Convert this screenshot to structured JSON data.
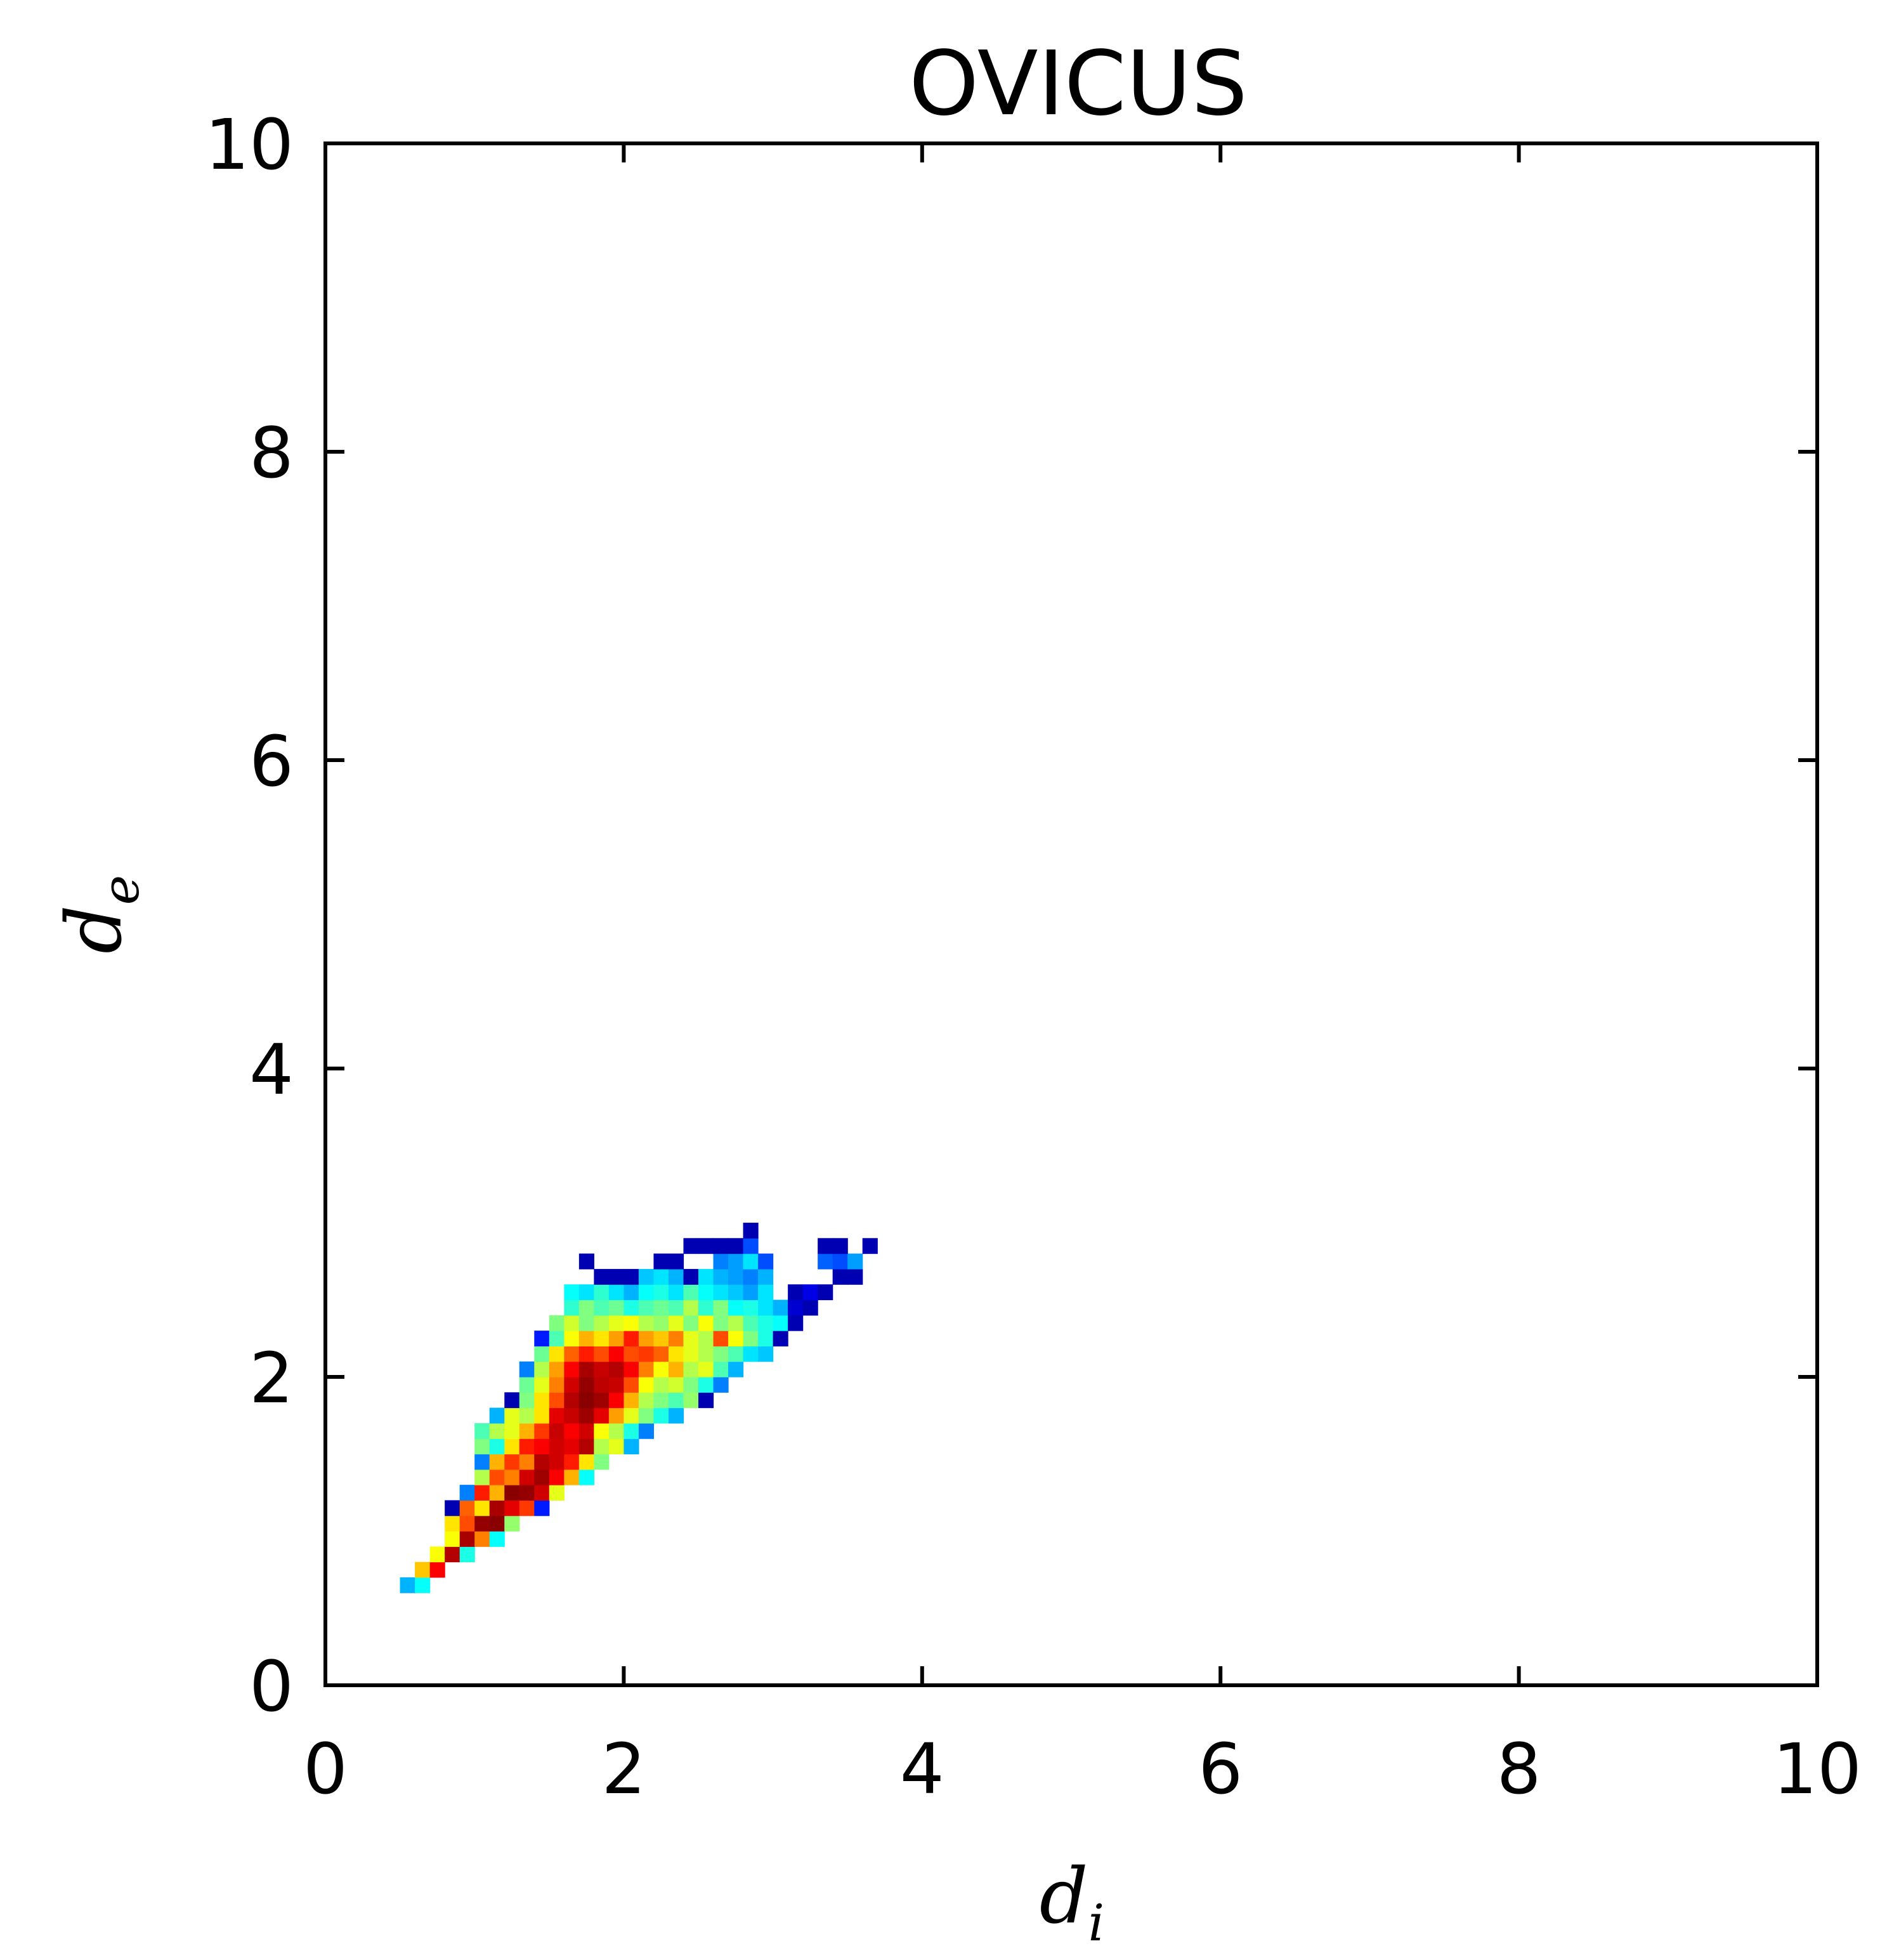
{
  "chart_data": {
    "type": "heatmap",
    "title": "OVICUS",
    "xlabel": "d",
    "xlabel_sub": "i",
    "ylabel": "d",
    "ylabel_sub": "e",
    "xlim": [
      0,
      10
    ],
    "ylim": [
      0,
      10
    ],
    "xticks": [
      "0",
      "2",
      "4",
      "6",
      "8",
      "10"
    ],
    "yticks": [
      "0",
      "2",
      "4",
      "6",
      "8",
      "10"
    ],
    "grid": false,
    "bin_size": 0.1,
    "colormap": "jet",
    "value_range": [
      0,
      1
    ],
    "cells": [
      {
        "x": 0.5,
        "y": 0.6,
        "v": 0.3
      },
      {
        "x": 0.6,
        "y": 0.6,
        "v": 0.38
      },
      {
        "x": 0.6,
        "y": 0.7,
        "v": 0.68
      },
      {
        "x": 0.7,
        "y": 0.7,
        "v": 0.88
      },
      {
        "x": 0.7,
        "y": 0.8,
        "v": 0.62
      },
      {
        "x": 0.8,
        "y": 0.8,
        "v": 0.95
      },
      {
        "x": 0.9,
        "y": 0.8,
        "v": 0.4
      },
      {
        "x": 0.8,
        "y": 0.9,
        "v": 0.62
      },
      {
        "x": 0.9,
        "y": 0.9,
        "v": 0.96
      },
      {
        "x": 1.0,
        "y": 0.9,
        "v": 0.75
      },
      {
        "x": 1.1,
        "y": 0.9,
        "v": 0.38
      },
      {
        "x": 0.8,
        "y": 1.0,
        "v": 0.65
      },
      {
        "x": 0.9,
        "y": 1.0,
        "v": 0.8
      },
      {
        "x": 1.0,
        "y": 1.0,
        "v": 0.98
      },
      {
        "x": 1.1,
        "y": 1.0,
        "v": 0.99
      },
      {
        "x": 1.2,
        "y": 1.0,
        "v": 0.52
      },
      {
        "x": 0.8,
        "y": 1.1,
        "v": 0.05
      },
      {
        "x": 0.9,
        "y": 1.1,
        "v": 0.78
      },
      {
        "x": 1.0,
        "y": 1.1,
        "v": 0.65
      },
      {
        "x": 1.1,
        "y": 1.1,
        "v": 0.96
      },
      {
        "x": 1.2,
        "y": 1.1,
        "v": 0.9
      },
      {
        "x": 1.3,
        "y": 1.1,
        "v": 0.82
      },
      {
        "x": 1.4,
        "y": 1.1,
        "v": 0.15
      },
      {
        "x": 0.9,
        "y": 1.2,
        "v": 0.25
      },
      {
        "x": 1.0,
        "y": 1.2,
        "v": 0.85
      },
      {
        "x": 1.1,
        "y": 1.2,
        "v": 0.7
      },
      {
        "x": 1.2,
        "y": 1.2,
        "v": 0.99
      },
      {
        "x": 1.3,
        "y": 1.2,
        "v": 0.98
      },
      {
        "x": 1.4,
        "y": 1.2,
        "v": 0.92
      },
      {
        "x": 1.5,
        "y": 1.2,
        "v": 0.6
      },
      {
        "x": 1.0,
        "y": 1.3,
        "v": 0.55
      },
      {
        "x": 1.1,
        "y": 1.3,
        "v": 0.8
      },
      {
        "x": 1.2,
        "y": 1.3,
        "v": 0.75
      },
      {
        "x": 1.3,
        "y": 1.3,
        "v": 0.92
      },
      {
        "x": 1.4,
        "y": 1.3,
        "v": 0.97
      },
      {
        "x": 1.5,
        "y": 1.3,
        "v": 0.88
      },
      {
        "x": 1.6,
        "y": 1.3,
        "v": 0.7
      },
      {
        "x": 1.7,
        "y": 1.3,
        "v": 0.38
      },
      {
        "x": 1.0,
        "y": 1.4,
        "v": 0.25
      },
      {
        "x": 1.1,
        "y": 1.4,
        "v": 0.7
      },
      {
        "x": 1.2,
        "y": 1.4,
        "v": 0.82
      },
      {
        "x": 1.3,
        "y": 1.4,
        "v": 0.75
      },
      {
        "x": 1.4,
        "y": 1.4,
        "v": 0.95
      },
      {
        "x": 1.5,
        "y": 1.4,
        "v": 0.92
      },
      {
        "x": 1.6,
        "y": 1.4,
        "v": 0.85
      },
      {
        "x": 1.7,
        "y": 1.4,
        "v": 0.65
      },
      {
        "x": 1.8,
        "y": 1.4,
        "v": 0.5
      },
      {
        "x": 1.0,
        "y": 1.5,
        "v": 0.5
      },
      {
        "x": 1.1,
        "y": 1.5,
        "v": 0.4
      },
      {
        "x": 1.2,
        "y": 1.5,
        "v": 0.65
      },
      {
        "x": 1.3,
        "y": 1.5,
        "v": 0.85
      },
      {
        "x": 1.4,
        "y": 1.5,
        "v": 0.88
      },
      {
        "x": 1.5,
        "y": 1.5,
        "v": 0.92
      },
      {
        "x": 1.6,
        "y": 1.5,
        "v": 0.9
      },
      {
        "x": 1.7,
        "y": 1.5,
        "v": 0.95
      },
      {
        "x": 1.8,
        "y": 1.5,
        "v": 0.55
      },
      {
        "x": 1.9,
        "y": 1.5,
        "v": 0.6
      },
      {
        "x": 2.0,
        "y": 1.5,
        "v": 0.3
      },
      {
        "x": 1.0,
        "y": 1.6,
        "v": 0.45
      },
      {
        "x": 1.1,
        "y": 1.6,
        "v": 0.55
      },
      {
        "x": 1.2,
        "y": 1.6,
        "v": 0.6
      },
      {
        "x": 1.3,
        "y": 1.6,
        "v": 0.7
      },
      {
        "x": 1.4,
        "y": 1.6,
        "v": 0.82
      },
      {
        "x": 1.5,
        "y": 1.6,
        "v": 0.93
      },
      {
        "x": 1.6,
        "y": 1.6,
        "v": 0.88
      },
      {
        "x": 1.7,
        "y": 1.6,
        "v": 0.92
      },
      {
        "x": 1.8,
        "y": 1.6,
        "v": 0.62
      },
      {
        "x": 1.9,
        "y": 1.6,
        "v": 0.55
      },
      {
        "x": 2.0,
        "y": 1.6,
        "v": 0.4
      },
      {
        "x": 2.1,
        "y": 1.6,
        "v": 0.25
      },
      {
        "x": 1.1,
        "y": 1.7,
        "v": 0.3
      },
      {
        "x": 1.2,
        "y": 1.7,
        "v": 0.6
      },
      {
        "x": 1.3,
        "y": 1.7,
        "v": 0.55
      },
      {
        "x": 1.4,
        "y": 1.7,
        "v": 0.65
      },
      {
        "x": 1.5,
        "y": 1.7,
        "v": 0.9
      },
      {
        "x": 1.6,
        "y": 1.7,
        "v": 0.93
      },
      {
        "x": 1.7,
        "y": 1.7,
        "v": 0.97
      },
      {
        "x": 1.8,
        "y": 1.7,
        "v": 0.9
      },
      {
        "x": 1.9,
        "y": 1.7,
        "v": 0.72
      },
      {
        "x": 2.0,
        "y": 1.7,
        "v": 0.6
      },
      {
        "x": 2.1,
        "y": 1.7,
        "v": 0.5
      },
      {
        "x": 2.2,
        "y": 1.7,
        "v": 0.4
      },
      {
        "x": 2.3,
        "y": 1.7,
        "v": 0.3
      },
      {
        "x": 1.2,
        "y": 1.8,
        "v": 0.05
      },
      {
        "x": 1.3,
        "y": 1.8,
        "v": 0.5
      },
      {
        "x": 1.4,
        "y": 1.8,
        "v": 0.65
      },
      {
        "x": 1.5,
        "y": 1.8,
        "v": 0.8
      },
      {
        "x": 1.6,
        "y": 1.8,
        "v": 0.95
      },
      {
        "x": 1.7,
        "y": 1.8,
        "v": 0.99
      },
      {
        "x": 1.8,
        "y": 1.8,
        "v": 0.97
      },
      {
        "x": 1.9,
        "y": 1.8,
        "v": 0.88
      },
      {
        "x": 2.0,
        "y": 1.8,
        "v": 0.7
      },
      {
        "x": 2.1,
        "y": 1.8,
        "v": 0.55
      },
      {
        "x": 2.2,
        "y": 1.8,
        "v": 0.5
      },
      {
        "x": 2.3,
        "y": 1.8,
        "v": 0.45
      },
      {
        "x": 2.4,
        "y": 1.8,
        "v": 0.52
      },
      {
        "x": 2.5,
        "y": 1.8,
        "v": 0.05
      },
      {
        "x": 1.3,
        "y": 1.9,
        "v": 0.48
      },
      {
        "x": 1.4,
        "y": 1.9,
        "v": 0.6
      },
      {
        "x": 1.5,
        "y": 1.9,
        "v": 0.75
      },
      {
        "x": 1.6,
        "y": 1.9,
        "v": 0.92
      },
      {
        "x": 1.7,
        "y": 1.9,
        "v": 0.98
      },
      {
        "x": 1.8,
        "y": 1.9,
        "v": 0.94
      },
      {
        "x": 1.9,
        "y": 1.9,
        "v": 0.93
      },
      {
        "x": 2.0,
        "y": 1.9,
        "v": 0.8
      },
      {
        "x": 2.1,
        "y": 1.9,
        "v": 0.62
      },
      {
        "x": 2.2,
        "y": 1.9,
        "v": 0.55
      },
      {
        "x": 2.3,
        "y": 1.9,
        "v": 0.58
      },
      {
        "x": 2.4,
        "y": 1.9,
        "v": 0.5
      },
      {
        "x": 2.5,
        "y": 1.9,
        "v": 0.4
      },
      {
        "x": 2.6,
        "y": 1.9,
        "v": 0.25
      },
      {
        "x": 1.3,
        "y": 2.0,
        "v": 0.25
      },
      {
        "x": 1.4,
        "y": 2.0,
        "v": 0.55
      },
      {
        "x": 1.5,
        "y": 2.0,
        "v": 0.72
      },
      {
        "x": 1.6,
        "y": 2.0,
        "v": 0.88
      },
      {
        "x": 1.7,
        "y": 2.0,
        "v": 0.96
      },
      {
        "x": 1.8,
        "y": 2.0,
        "v": 0.93
      },
      {
        "x": 1.9,
        "y": 2.0,
        "v": 0.95
      },
      {
        "x": 2.0,
        "y": 2.0,
        "v": 0.88
      },
      {
        "x": 2.1,
        "y": 2.0,
        "v": 0.75
      },
      {
        "x": 2.2,
        "y": 2.0,
        "v": 0.62
      },
      {
        "x": 2.3,
        "y": 2.0,
        "v": 0.7
      },
      {
        "x": 2.4,
        "y": 2.0,
        "v": 0.55
      },
      {
        "x": 2.5,
        "y": 2.0,
        "v": 0.6
      },
      {
        "x": 2.6,
        "y": 2.0,
        "v": 0.45
      },
      {
        "x": 2.7,
        "y": 2.0,
        "v": 0.3
      },
      {
        "x": 1.4,
        "y": 2.1,
        "v": 0.48
      },
      {
        "x": 1.5,
        "y": 2.1,
        "v": 0.65
      },
      {
        "x": 1.6,
        "y": 2.1,
        "v": 0.78
      },
      {
        "x": 1.7,
        "y": 2.1,
        "v": 0.85
      },
      {
        "x": 1.8,
        "y": 2.1,
        "v": 0.8
      },
      {
        "x": 1.9,
        "y": 2.1,
        "v": 0.88
      },
      {
        "x": 2.0,
        "y": 2.1,
        "v": 0.8
      },
      {
        "x": 2.1,
        "y": 2.1,
        "v": 0.82
      },
      {
        "x": 2.2,
        "y": 2.1,
        "v": 0.78
      },
      {
        "x": 2.3,
        "y": 2.1,
        "v": 0.65
      },
      {
        "x": 2.4,
        "y": 2.1,
        "v": 0.6
      },
      {
        "x": 2.5,
        "y": 2.1,
        "v": 0.55
      },
      {
        "x": 2.6,
        "y": 2.1,
        "v": 0.5
      },
      {
        "x": 2.7,
        "y": 2.1,
        "v": 0.45
      },
      {
        "x": 2.8,
        "y": 2.1,
        "v": 0.35
      },
      {
        "x": 2.9,
        "y": 2.1,
        "v": 0.32
      },
      {
        "x": 1.4,
        "y": 2.2,
        "v": 0.15
      },
      {
        "x": 1.5,
        "y": 2.2,
        "v": 0.45
      },
      {
        "x": 1.6,
        "y": 2.2,
        "v": 0.62
      },
      {
        "x": 1.7,
        "y": 2.2,
        "v": 0.7
      },
      {
        "x": 1.8,
        "y": 2.2,
        "v": 0.65
      },
      {
        "x": 1.9,
        "y": 2.2,
        "v": 0.72
      },
      {
        "x": 2.0,
        "y": 2.2,
        "v": 0.85
      },
      {
        "x": 2.1,
        "y": 2.2,
        "v": 0.72
      },
      {
        "x": 2.2,
        "y": 2.2,
        "v": 0.68
      },
      {
        "x": 2.3,
        "y": 2.2,
        "v": 0.75
      },
      {
        "x": 2.4,
        "y": 2.2,
        "v": 0.6
      },
      {
        "x": 2.5,
        "y": 2.2,
        "v": 0.55
      },
      {
        "x": 2.6,
        "y": 2.2,
        "v": 0.8
      },
      {
        "x": 2.7,
        "y": 2.2,
        "v": 0.62
      },
      {
        "x": 2.8,
        "y": 2.2,
        "v": 0.5
      },
      {
        "x": 2.9,
        "y": 2.2,
        "v": 0.4
      },
      {
        "x": 3.0,
        "y": 2.2,
        "v": 0.05
      },
      {
        "x": 1.5,
        "y": 2.3,
        "v": 0.5
      },
      {
        "x": 1.6,
        "y": 2.3,
        "v": 0.58
      },
      {
        "x": 1.7,
        "y": 2.3,
        "v": 0.5
      },
      {
        "x": 1.8,
        "y": 2.3,
        "v": 0.55
      },
      {
        "x": 1.9,
        "y": 2.3,
        "v": 0.6
      },
      {
        "x": 2.0,
        "y": 2.3,
        "v": 0.62
      },
      {
        "x": 2.1,
        "y": 2.3,
        "v": 0.55
      },
      {
        "x": 2.2,
        "y": 2.3,
        "v": 0.52
      },
      {
        "x": 2.3,
        "y": 2.3,
        "v": 0.6
      },
      {
        "x": 2.4,
        "y": 2.3,
        "v": 0.5
      },
      {
        "x": 2.5,
        "y": 2.3,
        "v": 0.62
      },
      {
        "x": 2.6,
        "y": 2.3,
        "v": 0.5
      },
      {
        "x": 2.7,
        "y": 2.3,
        "v": 0.55
      },
      {
        "x": 2.8,
        "y": 2.3,
        "v": 0.45
      },
      {
        "x": 2.9,
        "y": 2.3,
        "v": 0.4
      },
      {
        "x": 3.0,
        "y": 2.3,
        "v": 0.38
      },
      {
        "x": 3.1,
        "y": 2.3,
        "v": 0.05
      },
      {
        "x": 1.6,
        "y": 2.4,
        "v": 0.42
      },
      {
        "x": 1.7,
        "y": 2.4,
        "v": 0.5
      },
      {
        "x": 1.8,
        "y": 2.4,
        "v": 0.45
      },
      {
        "x": 1.9,
        "y": 2.4,
        "v": 0.48
      },
      {
        "x": 2.0,
        "y": 2.4,
        "v": 0.4
      },
      {
        "x": 2.1,
        "y": 2.4,
        "v": 0.45
      },
      {
        "x": 2.2,
        "y": 2.4,
        "v": 0.48
      },
      {
        "x": 2.3,
        "y": 2.4,
        "v": 0.45
      },
      {
        "x": 2.4,
        "y": 2.4,
        "v": 0.55
      },
      {
        "x": 2.5,
        "y": 2.4,
        "v": 0.42
      },
      {
        "x": 2.6,
        "y": 2.4,
        "v": 0.5
      },
      {
        "x": 2.7,
        "y": 2.4,
        "v": 0.38
      },
      {
        "x": 2.8,
        "y": 2.4,
        "v": 0.4
      },
      {
        "x": 2.9,
        "y": 2.4,
        "v": 0.35
      },
      {
        "x": 3.0,
        "y": 2.4,
        "v": 0.3
      },
      {
        "x": 3.1,
        "y": 2.4,
        "v": 0.08
      },
      {
        "x": 3.2,
        "y": 2.4,
        "v": 0.05
      },
      {
        "x": 1.6,
        "y": 2.5,
        "v": 0.38
      },
      {
        "x": 1.7,
        "y": 2.5,
        "v": 0.35
      },
      {
        "x": 1.8,
        "y": 2.5,
        "v": 0.42
      },
      {
        "x": 1.9,
        "y": 2.5,
        "v": 0.35
      },
      {
        "x": 2.0,
        "y": 2.5,
        "v": 0.3
      },
      {
        "x": 2.1,
        "y": 2.5,
        "v": 0.38
      },
      {
        "x": 2.2,
        "y": 2.5,
        "v": 0.4
      },
      {
        "x": 2.3,
        "y": 2.5,
        "v": 0.35
      },
      {
        "x": 2.4,
        "y": 2.5,
        "v": 0.45
      },
      {
        "x": 2.5,
        "y": 2.5,
        "v": 0.38
      },
      {
        "x": 2.6,
        "y": 2.5,
        "v": 0.35
      },
      {
        "x": 2.7,
        "y": 2.5,
        "v": 0.32
      },
      {
        "x": 2.8,
        "y": 2.5,
        "v": 0.28
      },
      {
        "x": 2.9,
        "y": 2.5,
        "v": 0.35
      },
      {
        "x": 3.1,
        "y": 2.5,
        "v": 0.05
      },
      {
        "x": 3.2,
        "y": 2.5,
        "v": 0.1
      },
      {
        "x": 3.3,
        "y": 2.5,
        "v": 0.05
      },
      {
        "x": 1.8,
        "y": 2.6,
        "v": 0.05
      },
      {
        "x": 1.9,
        "y": 2.6,
        "v": 0.05
      },
      {
        "x": 2.0,
        "y": 2.6,
        "v": 0.05
      },
      {
        "x": 2.1,
        "y": 2.6,
        "v": 0.32
      },
      {
        "x": 2.2,
        "y": 2.6,
        "v": 0.35
      },
      {
        "x": 2.3,
        "y": 2.6,
        "v": 0.3
      },
      {
        "x": 2.4,
        "y": 2.6,
        "v": 0.05
      },
      {
        "x": 2.5,
        "y": 2.6,
        "v": 0.35
      },
      {
        "x": 2.6,
        "y": 2.6,
        "v": 0.3
      },
      {
        "x": 2.7,
        "y": 2.6,
        "v": 0.28
      },
      {
        "x": 2.8,
        "y": 2.6,
        "v": 0.25
      },
      {
        "x": 2.9,
        "y": 2.6,
        "v": 0.3
      },
      {
        "x": 3.4,
        "y": 2.6,
        "v": 0.05
      },
      {
        "x": 3.5,
        "y": 2.6,
        "v": 0.05
      },
      {
        "x": 1.7,
        "y": 2.7,
        "v": 0.05
      },
      {
        "x": 2.2,
        "y": 2.7,
        "v": 0.05
      },
      {
        "x": 2.3,
        "y": 2.7,
        "v": 0.05
      },
      {
        "x": 2.6,
        "y": 2.7,
        "v": 0.25
      },
      {
        "x": 2.7,
        "y": 2.7,
        "v": 0.28
      },
      {
        "x": 2.8,
        "y": 2.7,
        "v": 0.35
      },
      {
        "x": 2.9,
        "y": 2.7,
        "v": 0.2
      },
      {
        "x": 3.3,
        "y": 2.7,
        "v": 0.22
      },
      {
        "x": 3.4,
        "y": 2.7,
        "v": 0.2
      },
      {
        "x": 3.5,
        "y": 2.7,
        "v": 0.28
      },
      {
        "x": 2.4,
        "y": 2.8,
        "v": 0.05
      },
      {
        "x": 2.5,
        "y": 2.8,
        "v": 0.05
      },
      {
        "x": 2.6,
        "y": 2.8,
        "v": 0.05
      },
      {
        "x": 2.7,
        "y": 2.8,
        "v": 0.05
      },
      {
        "x": 2.8,
        "y": 2.8,
        "v": 0.2
      },
      {
        "x": 3.3,
        "y": 2.8,
        "v": 0.05
      },
      {
        "x": 3.4,
        "y": 2.8,
        "v": 0.05
      },
      {
        "x": 3.6,
        "y": 2.8,
        "v": 0.05
      },
      {
        "x": 2.8,
        "y": 2.9,
        "v": 0.05
      }
    ]
  }
}
